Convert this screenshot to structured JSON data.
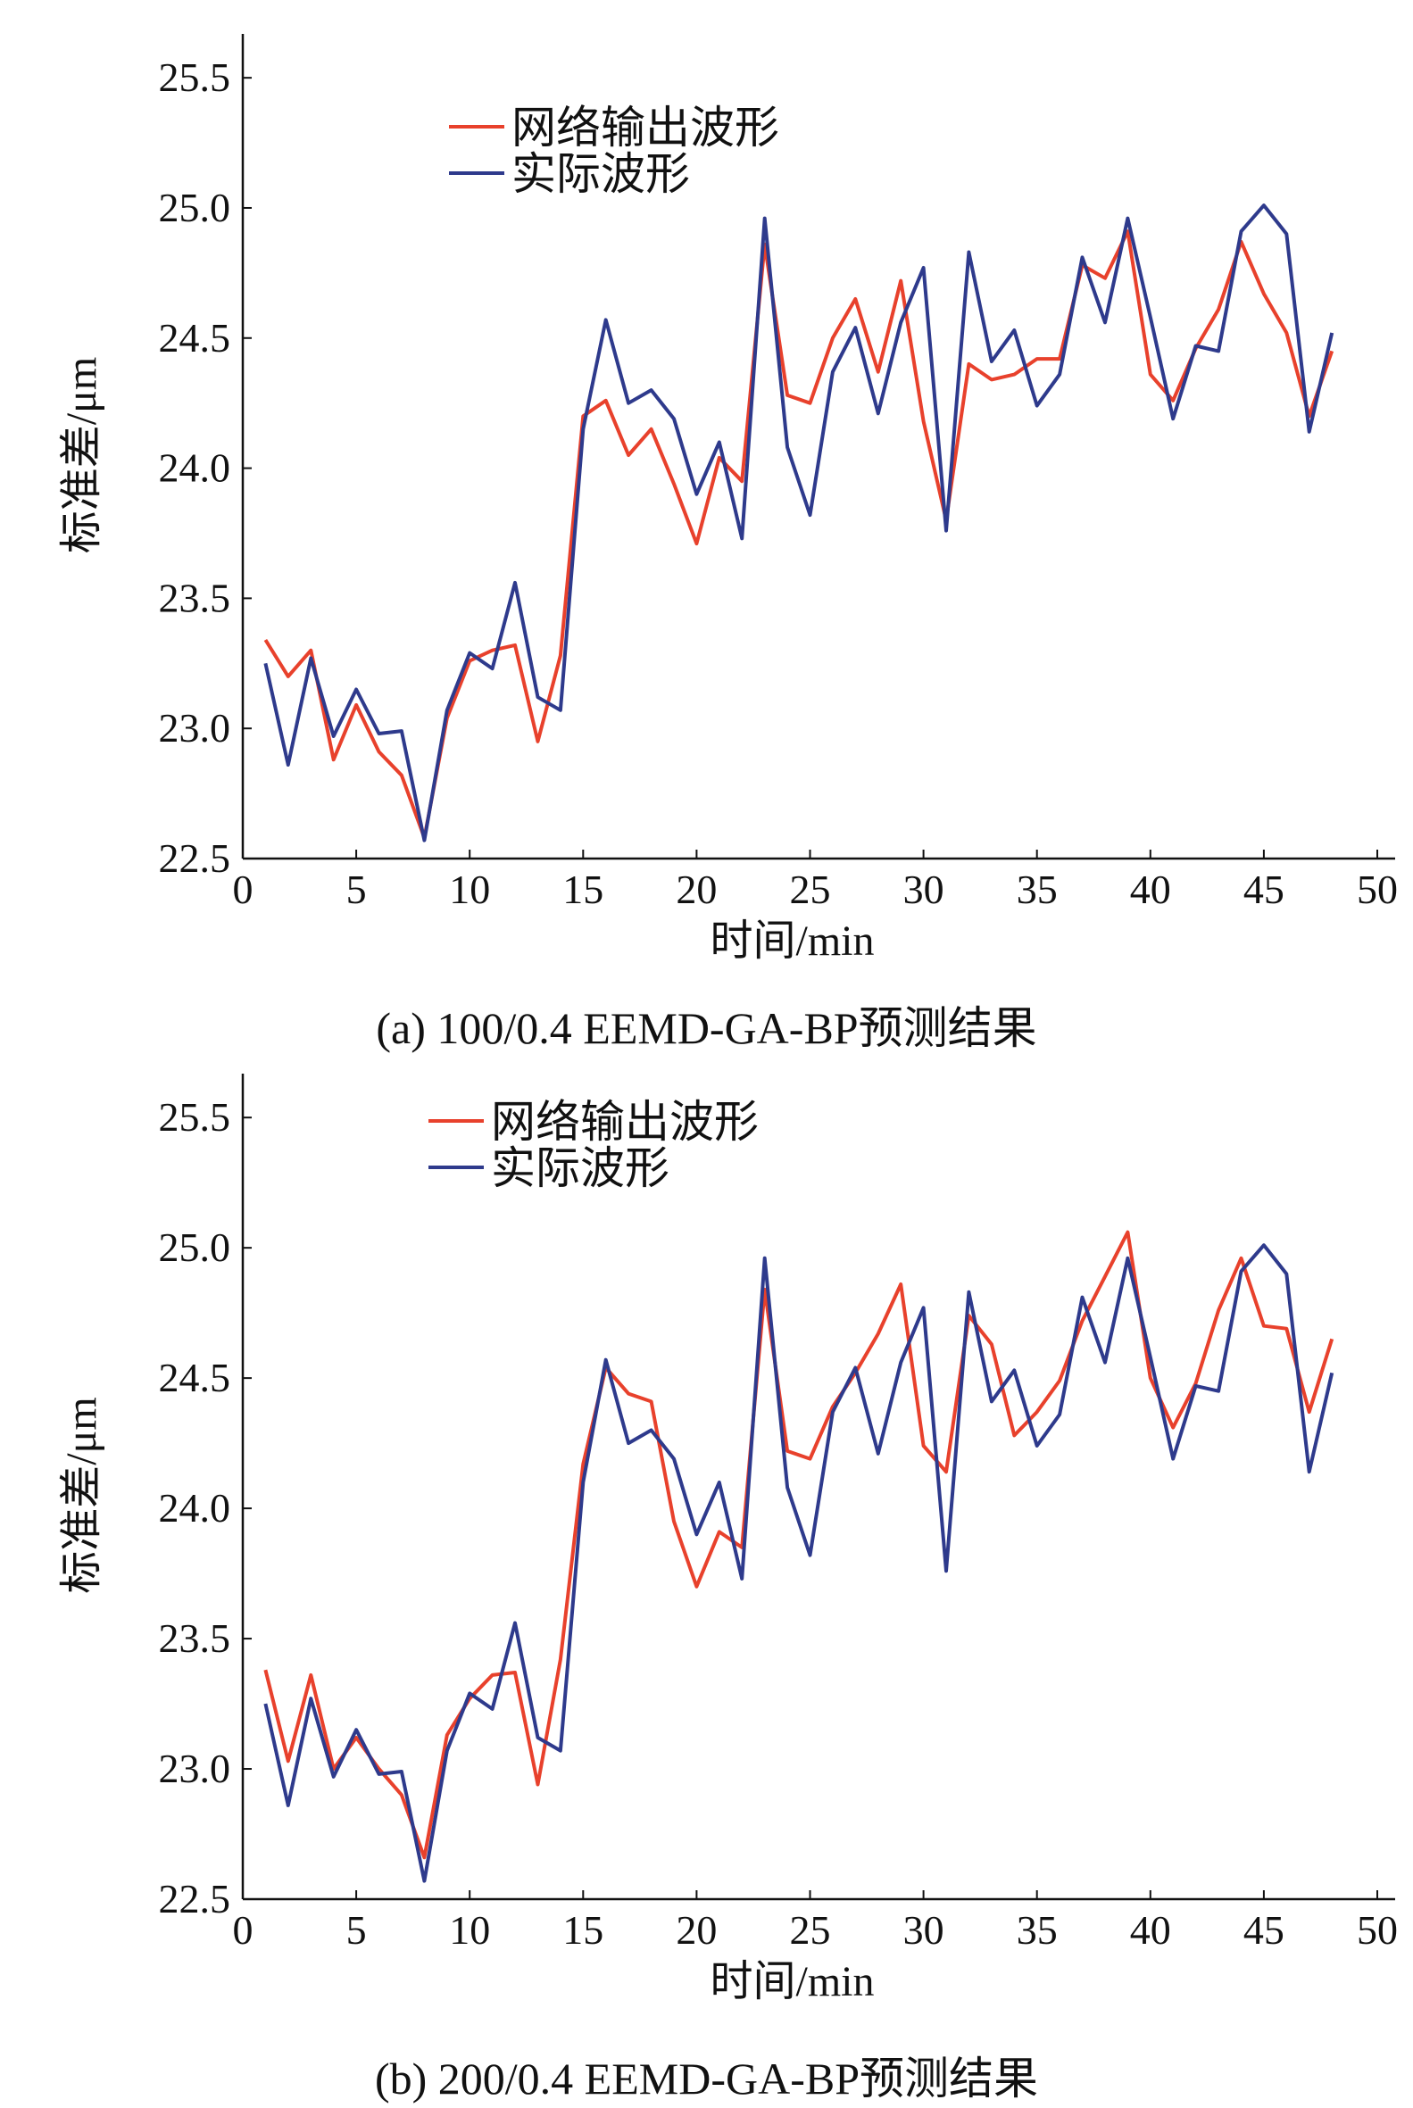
{
  "chart_data": [
    {
      "type": "line",
      "caption": "(a) 100/0.4 EEMD-GA-BP预测结果",
      "xlabel": "时间/min",
      "ylabel": "标准差/μm",
      "xlim": [
        0,
        50
      ],
      "ylim": [
        22.5,
        25.6
      ],
      "xticks": [
        0,
        5,
        10,
        15,
        20,
        25,
        30,
        35,
        40,
        45,
        50
      ],
      "yticks": [
        "22.5",
        "23.0",
        "23.5",
        "24.0",
        "24.5",
        "25.0",
        "25.5"
      ],
      "grid": false,
      "legend_position": "top-left",
      "x": [
        1,
        2,
        3,
        4,
        5,
        6,
        7,
        8,
        9,
        10,
        11,
        12,
        13,
        14,
        15,
        16,
        17,
        18,
        19,
        20,
        21,
        22,
        23,
        24,
        25,
        26,
        27,
        28,
        29,
        30,
        31,
        32,
        33,
        34,
        35,
        36,
        37,
        38,
        39,
        40,
        41,
        42,
        43,
        44,
        45,
        46,
        47,
        48
      ],
      "series": [
        {
          "name": "网络输出波形",
          "color": "#e8412c",
          "values": [
            23.34,
            23.2,
            23.3,
            22.88,
            23.09,
            22.91,
            22.82,
            22.58,
            23.04,
            23.26,
            23.3,
            23.32,
            22.95,
            23.28,
            24.2,
            24.26,
            24.05,
            24.15,
            23.94,
            23.71,
            24.04,
            23.95,
            24.86,
            24.28,
            24.25,
            24.5,
            24.65,
            24.37,
            24.72,
            24.18,
            23.8,
            24.4,
            24.34,
            24.36,
            24.42,
            24.42,
            24.78,
            24.73,
            24.91,
            24.36,
            24.26,
            24.46,
            24.61,
            24.87,
            24.67,
            24.52,
            24.2,
            24.45
          ]
        },
        {
          "name": "实际波形",
          "color": "#2e3a8c",
          "values": [
            23.25,
            22.86,
            23.27,
            22.97,
            23.15,
            22.98,
            22.99,
            22.57,
            23.07,
            23.29,
            23.23,
            23.56,
            23.12,
            23.07,
            24.15,
            24.57,
            24.25,
            24.3,
            24.19,
            23.9,
            24.1,
            23.73,
            24.96,
            24.08,
            23.82,
            24.37,
            24.54,
            24.21,
            24.56,
            24.77,
            23.76,
            24.83,
            24.41,
            24.53,
            24.24,
            24.36,
            24.81,
            24.56,
            24.96,
            24.58,
            24.19,
            24.47,
            24.45,
            24.91,
            25.01,
            24.9,
            24.14,
            24.52
          ]
        }
      ]
    },
    {
      "type": "line",
      "caption": "(b) 200/0.4 EEMD-GA-BP预测结果",
      "xlabel": "时间/min",
      "ylabel": "标准差/μm",
      "xlim": [
        0,
        50
      ],
      "ylim": [
        22.5,
        25.6
      ],
      "xticks": [
        0,
        5,
        10,
        15,
        20,
        25,
        30,
        35,
        40,
        45,
        50
      ],
      "yticks": [
        "22.5",
        "23.0",
        "23.5",
        "24.0",
        "24.5",
        "25.0",
        "25.5"
      ],
      "grid": false,
      "legend_position": "top-left",
      "x": [
        1,
        2,
        3,
        4,
        5,
        6,
        7,
        8,
        9,
        10,
        11,
        12,
        13,
        14,
        15,
        16,
        17,
        18,
        19,
        20,
        21,
        22,
        23,
        24,
        25,
        26,
        27,
        28,
        29,
        30,
        31,
        32,
        33,
        34,
        35,
        36,
        37,
        38,
        39,
        40,
        41,
        42,
        43,
        44,
        45,
        46,
        47,
        48
      ],
      "series": [
        {
          "name": "网络输出波形",
          "color": "#e8412c",
          "values": [
            23.38,
            23.03,
            23.36,
            23.0,
            23.12,
            23.0,
            22.9,
            22.66,
            23.13,
            23.27,
            23.36,
            23.37,
            22.94,
            23.42,
            24.17,
            24.54,
            24.44,
            24.41,
            23.95,
            23.7,
            23.91,
            23.85,
            24.84,
            24.22,
            24.19,
            24.39,
            24.52,
            24.67,
            24.86,
            24.24,
            24.14,
            24.74,
            24.63,
            24.28,
            24.37,
            24.49,
            24.72,
            24.89,
            25.06,
            24.5,
            24.31,
            24.48,
            24.76,
            24.96,
            24.7,
            24.69,
            24.37,
            24.65
          ]
        },
        {
          "name": "实际波形",
          "color": "#2e3a8c",
          "values": [
            23.25,
            22.86,
            23.27,
            22.97,
            23.15,
            22.98,
            22.99,
            22.57,
            23.07,
            23.29,
            23.23,
            23.56,
            23.12,
            23.07,
            24.1,
            24.57,
            24.25,
            24.3,
            24.19,
            23.9,
            24.1,
            23.73,
            24.96,
            24.08,
            23.82,
            24.37,
            24.54,
            24.21,
            24.56,
            24.77,
            23.76,
            24.83,
            24.41,
            24.53,
            24.24,
            24.36,
            24.81,
            24.56,
            24.96,
            24.58,
            24.19,
            24.47,
            24.45,
            24.91,
            25.01,
            24.9,
            24.14,
            24.52
          ]
        }
      ]
    }
  ]
}
